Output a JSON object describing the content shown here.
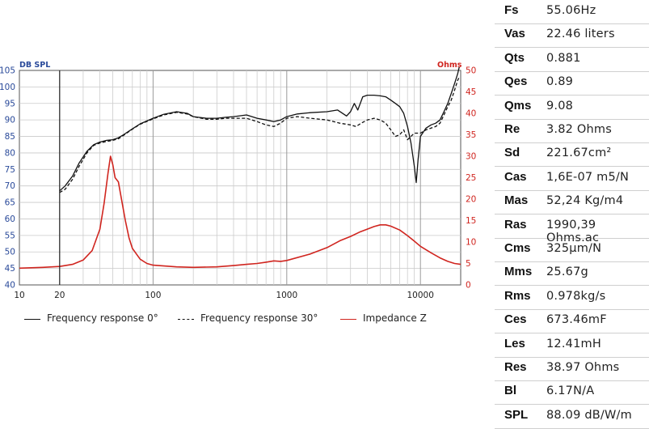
{
  "chart_data": {
    "type": "line",
    "x_scale": "log",
    "xlim": [
      10,
      20000
    ],
    "ylim_left": [
      40,
      105
    ],
    "ylim_right": [
      0,
      50
    ],
    "ylabel_left": "DB SPL",
    "ylabel_right": "Ohms",
    "x_ticks": [
      "10",
      "20",
      "100",
      "1000",
      "10000"
    ],
    "x_tick_values": [
      10,
      20,
      100,
      1000,
      10000
    ],
    "y_ticks_left": [
      40,
      45,
      50,
      55,
      60,
      65,
      70,
      75,
      80,
      85,
      90,
      95,
      100,
      105
    ],
    "y_ticks_right": [
      0,
      5,
      10,
      15,
      20,
      25,
      30,
      35,
      40,
      45,
      50
    ],
    "grid": true,
    "legend_position": "bottom",
    "colors": {
      "fr0": "#111111",
      "fr30": "#111111",
      "impedance": "#d0251f",
      "right_axis": "#d0251f"
    },
    "series": [
      {
        "name": "Frequency response 0°",
        "axis": "left",
        "style": "solid",
        "points": [
          [
            20,
            68.5
          ],
          [
            22,
            70
          ],
          [
            25,
            73
          ],
          [
            28,
            77
          ],
          [
            32,
            80.5
          ],
          [
            36,
            82.5
          ],
          [
            40,
            83.3
          ],
          [
            45,
            83.8
          ],
          [
            50,
            84
          ],
          [
            55,
            84.6
          ],
          [
            60,
            85.5
          ],
          [
            70,
            87.3
          ],
          [
            80,
            88.8
          ],
          [
            100,
            90.5
          ],
          [
            120,
            91.7
          ],
          [
            150,
            92.5
          ],
          [
            180,
            92
          ],
          [
            200,
            91
          ],
          [
            250,
            90.5
          ],
          [
            300,
            90.5
          ],
          [
            350,
            90.8
          ],
          [
            400,
            91
          ],
          [
            500,
            91.5
          ],
          [
            600,
            90.5
          ],
          [
            700,
            90
          ],
          [
            800,
            89.5
          ],
          [
            900,
            90
          ],
          [
            1000,
            91
          ],
          [
            1200,
            91.8
          ],
          [
            1500,
            92.2
          ],
          [
            2000,
            92.5
          ],
          [
            2400,
            93
          ],
          [
            2800,
            91.2
          ],
          [
            3000,
            92.5
          ],
          [
            3200,
            95
          ],
          [
            3400,
            93
          ],
          [
            3700,
            97
          ],
          [
            4000,
            97.5
          ],
          [
            4500,
            97.5
          ],
          [
            5000,
            97.3
          ],
          [
            5500,
            97
          ],
          [
            6000,
            96
          ],
          [
            6500,
            95
          ],
          [
            7000,
            94
          ],
          [
            7500,
            92
          ],
          [
            8000,
            88
          ],
          [
            8500,
            83
          ],
          [
            9000,
            76
          ],
          [
            9300,
            71
          ],
          [
            9600,
            78
          ],
          [
            10000,
            85
          ],
          [
            11000,
            87.5
          ],
          [
            12000,
            88.5
          ],
          [
            13000,
            89
          ],
          [
            14000,
            90
          ],
          [
            15000,
            92.5
          ],
          [
            16000,
            95
          ],
          [
            17000,
            98
          ],
          [
            18000,
            101
          ],
          [
            19000,
            104
          ],
          [
            19500,
            106
          ]
        ]
      },
      {
        "name": "Frequency response 30°",
        "axis": "left",
        "style": "dashed",
        "points": [
          [
            20,
            68
          ],
          [
            22,
            69
          ],
          [
            25,
            72
          ],
          [
            28,
            76
          ],
          [
            32,
            80
          ],
          [
            36,
            82.3
          ],
          [
            40,
            83
          ],
          [
            45,
            83.5
          ],
          [
            50,
            83.8
          ],
          [
            55,
            84.3
          ],
          [
            60,
            85.3
          ],
          [
            70,
            87.2
          ],
          [
            80,
            88.7
          ],
          [
            100,
            90.3
          ],
          [
            120,
            91.5
          ],
          [
            150,
            92.3
          ],
          [
            180,
            91.8
          ],
          [
            200,
            91
          ],
          [
            250,
            90.2
          ],
          [
            300,
            90.2
          ],
          [
            350,
            90.5
          ],
          [
            400,
            90.5
          ],
          [
            500,
            90.5
          ],
          [
            600,
            89.5
          ],
          [
            700,
            88.5
          ],
          [
            800,
            88
          ],
          [
            900,
            89
          ],
          [
            1000,
            90.5
          ],
          [
            1200,
            91
          ],
          [
            1500,
            90.5
          ],
          [
            2000,
            90
          ],
          [
            2500,
            89
          ],
          [
            3000,
            88.5
          ],
          [
            3300,
            88
          ],
          [
            3600,
            89
          ],
          [
            4000,
            90
          ],
          [
            4500,
            90.5
          ],
          [
            5000,
            90
          ],
          [
            5500,
            89
          ],
          [
            6000,
            87
          ],
          [
            6500,
            85
          ],
          [
            7000,
            85.5
          ],
          [
            7500,
            87
          ],
          [
            8000,
            84
          ],
          [
            8500,
            85
          ],
          [
            9000,
            86
          ],
          [
            10000,
            86
          ],
          [
            11000,
            87
          ],
          [
            12000,
            87.5
          ],
          [
            13000,
            88
          ],
          [
            14000,
            89
          ],
          [
            15000,
            91.5
          ],
          [
            16000,
            94
          ],
          [
            17000,
            96
          ],
          [
            18000,
            99
          ],
          [
            19000,
            102
          ],
          [
            19500,
            103
          ]
        ]
      },
      {
        "name": "Impedance Z",
        "axis": "right",
        "style": "solid",
        "points": [
          [
            10,
            3.9
          ],
          [
            15,
            4.1
          ],
          [
            20,
            4.3
          ],
          [
            25,
            4.8
          ],
          [
            30,
            5.8
          ],
          [
            35,
            8
          ],
          [
            40,
            13
          ],
          [
            43,
            19
          ],
          [
            46,
            26
          ],
          [
            48,
            30
          ],
          [
            50,
            28
          ],
          [
            52,
            25
          ],
          [
            55,
            24
          ],
          [
            58,
            20
          ],
          [
            62,
            15
          ],
          [
            66,
            11
          ],
          [
            70,
            8.5
          ],
          [
            80,
            6
          ],
          [
            90,
            5
          ],
          [
            100,
            4.6
          ],
          [
            150,
            4.2
          ],
          [
            200,
            4.1
          ],
          [
            300,
            4.2
          ],
          [
            400,
            4.5
          ],
          [
            500,
            4.8
          ],
          [
            600,
            5
          ],
          [
            700,
            5.3
          ],
          [
            800,
            5.6
          ],
          [
            900,
            5.5
          ],
          [
            1000,
            5.7
          ],
          [
            1500,
            7.2
          ],
          [
            2000,
            8.7
          ],
          [
            2500,
            10.3
          ],
          [
            3000,
            11.3
          ],
          [
            3500,
            12.3
          ],
          [
            4000,
            13
          ],
          [
            4500,
            13.6
          ],
          [
            5000,
            14
          ],
          [
            5500,
            14
          ],
          [
            6000,
            13.7
          ],
          [
            7000,
            12.8
          ],
          [
            8000,
            11.5
          ],
          [
            9000,
            10.2
          ],
          [
            10000,
            9
          ],
          [
            12000,
            7.5
          ],
          [
            14000,
            6.3
          ],
          [
            16000,
            5.5
          ],
          [
            18000,
            5
          ],
          [
            20000,
            4.8
          ]
        ]
      }
    ]
  },
  "legend": [
    {
      "label": "Frequency response 0°"
    },
    {
      "label": "Frequency response 30°"
    },
    {
      "label": "Impedance Z"
    }
  ],
  "parameters": [
    {
      "name": "Fs",
      "value": "55.06Hz"
    },
    {
      "name": "Vas",
      "value": "22.46 liters"
    },
    {
      "name": "Qts",
      "value": "0.881"
    },
    {
      "name": "Qes",
      "value": "0.89"
    },
    {
      "name": "Qms",
      "value": "9.08"
    },
    {
      "name": "Re",
      "value": "3.82 Ohms"
    },
    {
      "name": "Sd",
      "value": "221.67cm²"
    },
    {
      "name": "Cas",
      "value": "1,6E-07 m5/N"
    },
    {
      "name": "Mas",
      "value": "52,24 Kg/m4"
    },
    {
      "name": "Ras",
      "value": "1990,39 Ohms.ac"
    },
    {
      "name": "Cms",
      "value": "325μm/N"
    },
    {
      "name": "Mms",
      "value": "25.67g"
    },
    {
      "name": "Rms",
      "value": "0.978kg/s"
    },
    {
      "name": "Ces",
      "value": "673.46mF"
    },
    {
      "name": "Les",
      "value": "12.41mH"
    },
    {
      "name": "Res",
      "value": "38.97 Ohms"
    },
    {
      "name": "Bl",
      "value": "6.17N/A"
    },
    {
      "name": "SPL",
      "value": "88.09 dB/W/m"
    }
  ]
}
